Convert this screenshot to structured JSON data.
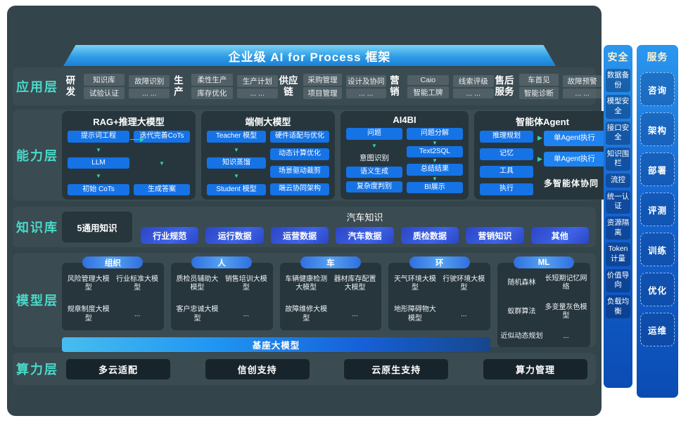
{
  "colors": {
    "panel": "#33454b",
    "card": "#27363d",
    "accent_teal": "#4ad9c9",
    "arrow_teal": "#2fd9a8",
    "item_blue": "#1573e6",
    "knowledge_pill_blue": "#3f63e6",
    "header_blue": "#2f9de6",
    "side_column_blue": "#1565d2",
    "compute_pill_dark": "#18242b"
  },
  "header": {
    "title": "企业级 AI for Process 框架"
  },
  "application": {
    "label": "应用层",
    "groups": [
      {
        "name": "研发",
        "col1": [
          "知识库",
          "试验认证"
        ],
        "col2": [
          "故障识别",
          "... ..."
        ]
      },
      {
        "name": "生产",
        "col1": [
          "柔性生产",
          "库存优化"
        ],
        "col2": [
          "生产计划",
          "... ..."
        ]
      },
      {
        "name": "供应链",
        "col1": [
          "采购管理",
          "项目管理"
        ],
        "col2": [
          "设计及协同",
          "... ..."
        ]
      },
      {
        "name": "营销",
        "col1": [
          "Caio",
          "智能工牌"
        ],
        "col2": [
          "线索评级",
          "... ..."
        ]
      },
      {
        "name": "售后服务",
        "col1": [
          "车首见",
          "智能诊断"
        ],
        "col2": [
          "故障预警",
          "... ..."
        ]
      }
    ]
  },
  "capability": {
    "label": "能力层",
    "rag": {
      "title": "RAG+推理大模型",
      "flow_left": [
        "提示词工程",
        "LLM",
        "初始 CoTs"
      ],
      "flow_right": [
        "迭代完善CoTs",
        "生成答案"
      ]
    },
    "edge": {
      "title": "端侧大模型",
      "flow": [
        "Teacher 模型",
        "知识蒸馏",
        "Student 模型"
      ],
      "list": [
        "硬件适配与优化",
        "动态计算优化",
        "场景驱动裁剪",
        "端云协同架构"
      ]
    },
    "bi": {
      "title": "AI4BI",
      "left": [
        "问题",
        "意图识别",
        "语义生成",
        "复杂度判别"
      ],
      "right": [
        "问题分解",
        "Text2SQL",
        "总结结果",
        "BI展示"
      ]
    },
    "agent": {
      "title": "智能体Agent",
      "modules": [
        "推理规划",
        "记忆",
        "工具",
        "执行"
      ],
      "exec1": "单Agent执行",
      "exec2": "单Agent执行",
      "caption": "多智能体协同"
    }
  },
  "knowledge": {
    "label": "知识库",
    "general": "5通用知识",
    "auto_title": "汽车知识",
    "pills": [
      "行业规范",
      "运行数据",
      "运营数据",
      "汽车数据",
      "质检数据",
      "营销知识",
      "其他"
    ]
  },
  "model": {
    "label": "模型层",
    "groups": [
      {
        "tag": "组织",
        "items": [
          "风险管理大模型",
          "行业标准大模型",
          "规章制度大模型",
          "..."
        ]
      },
      {
        "tag": "人",
        "items": [
          "质检员辅助大模型",
          "销售培训大模型",
          "客户忠诚大模型",
          "..."
        ]
      },
      {
        "tag": "车",
        "items": [
          "车辆健康检测大模型",
          "器材库存配置大模型",
          "故障维修大模型",
          "..."
        ]
      },
      {
        "tag": "环",
        "items": [
          "天气环境大模型",
          "行驶环境大模型",
          "地形障碍物大模型",
          "..."
        ]
      },
      {
        "tag": "ML",
        "items": [
          "随机森林",
          "长短期记忆网络",
          "蚁群算法",
          "多变量灰色模型",
          "近似动态规划",
          "..."
        ]
      }
    ],
    "base_bar": "基座大模型"
  },
  "compute": {
    "label": "算力层",
    "pills": [
      "多云适配",
      "信创支持",
      "云原生支持",
      "算力管理"
    ]
  },
  "security": {
    "title": "安全",
    "items": [
      "数据备份",
      "模型安全",
      "接口安全",
      "知识围栏",
      "流控",
      "统一认证",
      "资源隔离",
      "Token计量",
      "价值导向",
      "负载均衡"
    ]
  },
  "service": {
    "title": "服务",
    "items": [
      "咨询",
      "架构",
      "部署",
      "评测",
      "训练",
      "优化",
      "运维"
    ]
  }
}
